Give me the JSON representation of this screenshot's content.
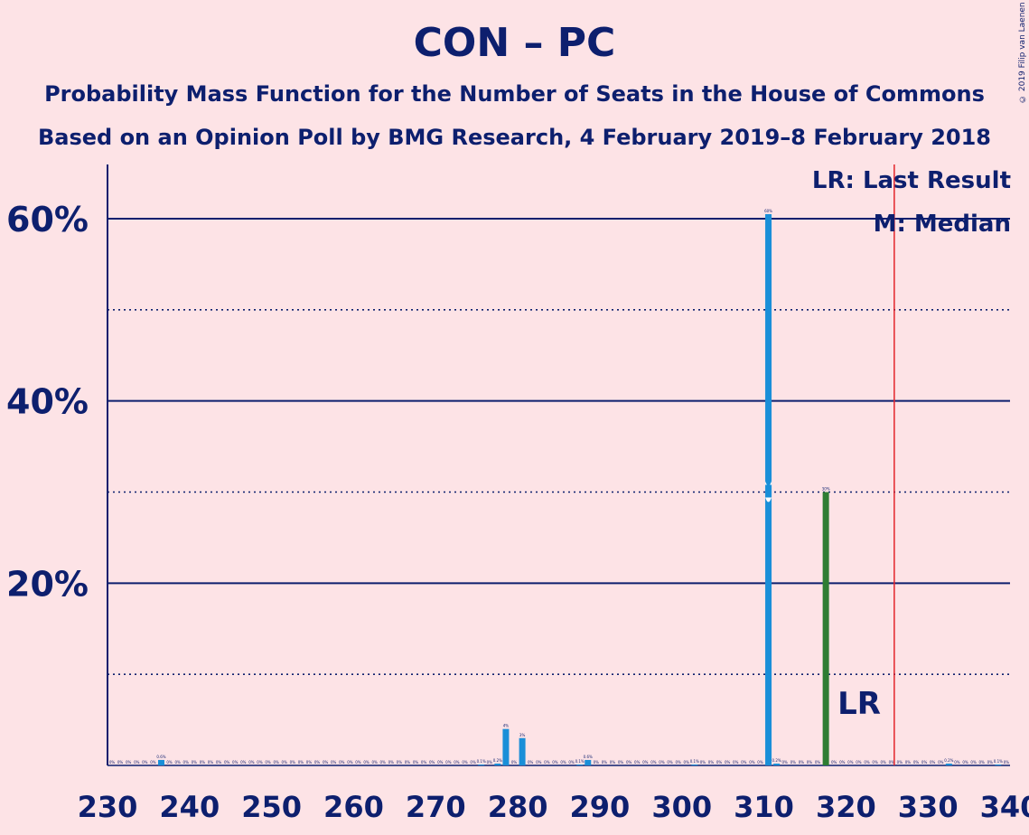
{
  "title": "CON – PC",
  "subtitle1": "Probability Mass Function for the Number of Seats in the House of Commons",
  "subtitle2": "Based on an Opinion Poll by BMG Research, 4 February 2019–8 February 2018",
  "copyright": "© 2019 Filip van Laenen",
  "legend": {
    "last_result": "LR: Last Result",
    "median": "M: Median"
  },
  "lr_label": "LR",
  "colors": {
    "bar": "#1a8fd8",
    "last_result_bar": "#2e7d32",
    "threshold_line": "#e3242b",
    "axis": "#0d1f6e",
    "background": "#fde3e6"
  },
  "chart_data": {
    "type": "bar",
    "xlim": [
      230,
      340
    ],
    "ylim": [
      0,
      66
    ],
    "x_ticks": [
      "230",
      "240",
      "250",
      "260",
      "270",
      "280",
      "290",
      "300",
      "310",
      "320",
      "330",
      "340"
    ],
    "y_ticks": [
      "20%",
      "40%",
      "60%"
    ],
    "y_gridlines_solid": [
      20,
      40,
      60
    ],
    "y_gridlines_dotted": [
      10,
      30,
      50
    ],
    "median_seat": 310,
    "last_result_seat": 317,
    "majority_line_seat": 326,
    "bars": [
      {
        "seat": 236,
        "value": 0.6,
        "label": "0.6%"
      },
      {
        "seat": 275,
        "value": 0.1,
        "label": "0.1%"
      },
      {
        "seat": 277,
        "value": 0.2,
        "label": "0.2%"
      },
      {
        "seat": 278,
        "value": 4,
        "label": "4%"
      },
      {
        "seat": 280,
        "value": 3,
        "label": "3%"
      },
      {
        "seat": 287,
        "value": 0.1,
        "label": "0.1%"
      },
      {
        "seat": 288,
        "value": 0.6,
        "label": "0.6%"
      },
      {
        "seat": 301,
        "value": 0.1,
        "label": "0.1%"
      },
      {
        "seat": 310,
        "value": 60.5,
        "label": "60%"
      },
      {
        "seat": 311,
        "value": 0.2,
        "label": "0.2%"
      },
      {
        "seat": 317,
        "value": 30,
        "label": "30%",
        "last_result": true
      },
      {
        "seat": 332,
        "value": 0.2,
        "label": "0.2%"
      },
      {
        "seat": 338,
        "value": 0.1,
        "label": "0.1%"
      }
    ]
  }
}
